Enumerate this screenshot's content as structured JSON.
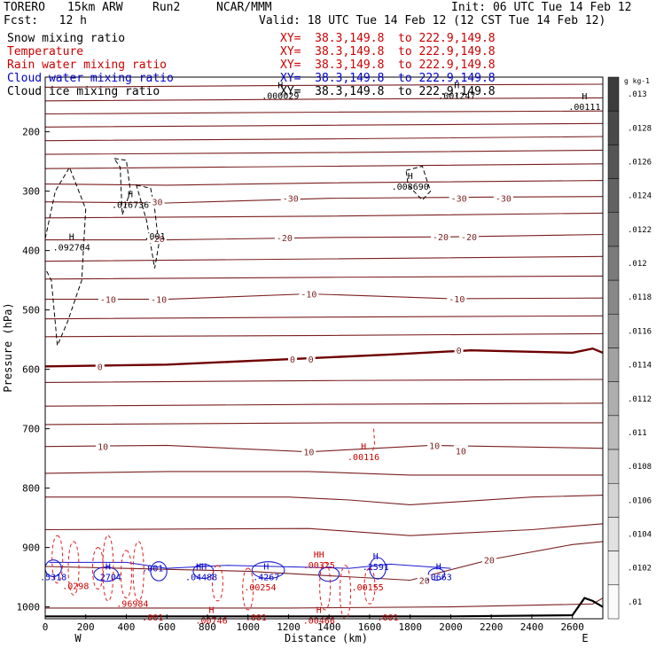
{
  "header": {
    "model": "TORERO",
    "resolution": "15km ARW",
    "run": "Run2",
    "org": "NCAR/MMM",
    "init": "Init: 06 UTC Tue 14 Feb 12",
    "fcst": "Fcst:   12 h",
    "valid": "Valid: 18 UTC Tue 14 Feb 12 (12 CST Tue 14 Feb 12)"
  },
  "fields": [
    {
      "name": "Snow mixing ratio",
      "color": "#000000",
      "xy": "",
      "xy_color": "#000000"
    },
    {
      "name": "Temperature",
      "color": "#cc0000",
      "xy": "XY=  38.3,149.8  to 222.9,149.8",
      "xy_color": "#cc0000"
    },
    {
      "name": "Rain water mixing ratio",
      "color": "#cc0000",
      "xy": "XY=  38.3,149.8  to 222.9,149.8",
      "xy_color": "#cc0000"
    },
    {
      "name": "Cloud water mixing ratio",
      "color": "#0000cc",
      "xy": "XY=  38.3,149.8  to 222.9,149.8",
      "xy_color": "#0000cc"
    },
    {
      "name": "Cloud ice mixing ratio",
      "color": "#000000",
      "xy": "XY=  38.3,149.8  to 222.9,149.8",
      "xy_color": "#000000"
    }
  ],
  "snow_xy": "XY=  38.3,149.8  to 222.9,149.8",
  "chart_data": {
    "type": "cross-section",
    "xlabel": "Distance (km)",
    "ylabel": "Pressure (hPa)",
    "x_ticks": [
      0,
      200,
      400,
      600,
      800,
      1000,
      1200,
      1400,
      1600,
      1800,
      2000,
      2200,
      2400,
      2600
    ],
    "xlim": [
      0,
      2750
    ],
    "y_ticks": [
      200,
      300,
      400,
      500,
      600,
      700,
      800,
      900,
      1000
    ],
    "ylim": [
      108,
      1020
    ],
    "y_scale": "linear",
    "end_labels": {
      "left": "W",
      "right": "E"
    },
    "colorbar": {
      "unit": "g kg-1",
      "ticks": [
        ".013",
        ".0128",
        ".0126",
        ".0124",
        ".0122",
        ".012",
        ".0118",
        ".0116",
        ".0114",
        ".0112",
        ".011",
        ".0108",
        ".0106",
        ".0104",
        ".0102",
        ".01"
      ]
    },
    "temperature_labels": [
      {
        "x": 1210,
        "p": 312,
        "text": "-30"
      },
      {
        "x": 2040,
        "p": 312,
        "text": "-30"
      },
      {
        "x": 2260,
        "p": 312,
        "text": "-30"
      },
      {
        "x": 540,
        "p": 318,
        "text": "-30"
      },
      {
        "x": 550,
        "p": 380,
        "text": "-20"
      },
      {
        "x": 1180,
        "p": 378,
        "text": "-20"
      },
      {
        "x": 1950,
        "p": 377,
        "text": "-20"
      },
      {
        "x": 2090,
        "p": 377,
        "text": "-20"
      },
      {
        "x": 310,
        "p": 482,
        "text": "-10"
      },
      {
        "x": 560,
        "p": 482,
        "text": "-10"
      },
      {
        "x": 1300,
        "p": 473,
        "text": "-10"
      },
      {
        "x": 2030,
        "p": 481,
        "text": "-10"
      },
      {
        "x": 270,
        "p": 595,
        "text": "0"
      },
      {
        "x": 1220,
        "p": 583,
        "text": "0"
      },
      {
        "x": 1310,
        "p": 583,
        "text": "0"
      },
      {
        "x": 2040,
        "p": 568,
        "text": "0"
      },
      {
        "x": 285,
        "p": 730,
        "text": "10"
      },
      {
        "x": 1300,
        "p": 739,
        "text": "10"
      },
      {
        "x": 1920,
        "p": 728,
        "text": "10"
      },
      {
        "x": 2050,
        "p": 737,
        "text": "10"
      },
      {
        "x": 1870,
        "p": 955,
        "text": "20"
      },
      {
        "x": 2190,
        "p": 921,
        "text": "20"
      }
    ],
    "maxima": [
      {
        "x": 1160,
        "p": 130,
        "h": "H",
        "value": ".000029",
        "color": "#000000"
      },
      {
        "x": 2030,
        "p": 130,
        "h": "H",
        "value": ".001247",
        "color": "#000000"
      },
      {
        "x": 2660,
        "p": 148,
        "h": "H",
        "value": ".00111",
        "color": "#000000"
      },
      {
        "x": 1800,
        "p": 283,
        "h": "H",
        "value": ".008690",
        "color": "#000000"
      },
      {
        "x": 420,
        "p": 313,
        "h": "H",
        "value": ".016736",
        "color": "#000000"
      },
      {
        "x": 540,
        "p": 366,
        "h": "",
        "value": ".001",
        "color": "#000000"
      },
      {
        "x": 130,
        "p": 385,
        "h": "H",
        "value": ".092764",
        "color": "#000000"
      },
      {
        "x": 1570,
        "p": 738,
        "h": "H",
        "value": ".00116",
        "color": "#cc0000"
      },
      {
        "x": 40,
        "p": 940,
        "h": "",
        "value": ".5318",
        "color": "#0000cc"
      },
      {
        "x": 150,
        "p": 955,
        "h": "",
        "value": ".0298",
        "color": "#cc0000"
      },
      {
        "x": 310,
        "p": 940,
        "h": "H",
        "value": ".2704",
        "color": "#0000cc"
      },
      {
        "x": 430,
        "p": 985,
        "h": "",
        "value": ".96984",
        "color": "#cc0000"
      },
      {
        "x": 530,
        "p": 925,
        "h": "",
        "value": ".001",
        "color": "#0000cc"
      },
      {
        "x": 770,
        "p": 940,
        "h": "HH",
        "value": ".04488",
        "color": "#0000cc"
      },
      {
        "x": 1060,
        "p": 957,
        "h": "",
        "value": ".00254",
        "color": "#cc0000"
      },
      {
        "x": 1090,
        "p": 940,
        "h": "H",
        "value": ".4267",
        "color": "#0000cc"
      },
      {
        "x": 1350,
        "p": 920,
        "h": "HH",
        "value": ".00325",
        "color": "#cc0000"
      },
      {
        "x": 1630,
        "p": 923,
        "h": "H",
        "value": ".2591",
        "color": "#0000cc"
      },
      {
        "x": 1590,
        "p": 957,
        "h": "",
        "value": ".00155",
        "color": "#cc0000"
      },
      {
        "x": 1940,
        "p": 940,
        "h": "H",
        "value": ".0663",
        "color": "#0000cc"
      },
      {
        "x": 820,
        "p": 1013,
        "h": "H",
        "value": ".00746",
        "color": "#cc0000"
      },
      {
        "x": 1350,
        "p": 1013,
        "h": "H",
        "value": ".00466",
        "color": "#cc0000"
      },
      {
        "x": 530,
        "p": 1008,
        "h": "",
        "value": ".001",
        "color": "#cc0000"
      },
      {
        "x": 1040,
        "p": 1008,
        "h": "",
        "value": ".001",
        "color": "#cc0000"
      },
      {
        "x": 1690,
        "p": 1008,
        "h": "",
        "value": ".001",
        "color": "#cc0000"
      }
    ],
    "colors": {
      "temperature": "#7a1f1f",
      "freezing": "#6e0000",
      "rain": "#e02020",
      "cloud_water": "#1a1ad0",
      "ice": "#000000",
      "ground": "#000000"
    }
  }
}
